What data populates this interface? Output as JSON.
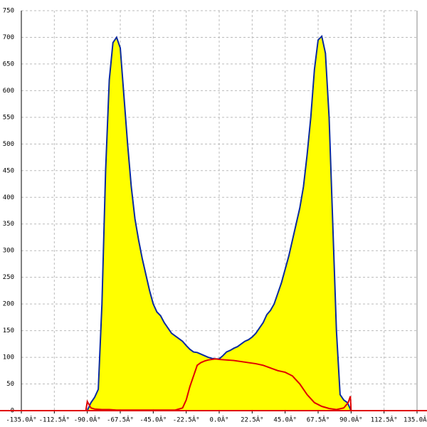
{
  "chart_data": {
    "type": "area",
    "xlim": [
      -135,
      135
    ],
    "ylim": [
      0,
      750
    ],
    "xticks": [
      {
        "value": -135,
        "label": "-135.0Â°"
      },
      {
        "value": -112.5,
        "label": "-112.5Â°"
      },
      {
        "value": -90,
        "label": "-90.0Â°"
      },
      {
        "value": -67.5,
        "label": "-67.5Â°"
      },
      {
        "value": -45,
        "label": "-45.0Â°"
      },
      {
        "value": -22.5,
        "label": "-22.5Â°"
      },
      {
        "value": 0,
        "label": "0.0Â°"
      },
      {
        "value": 22.5,
        "label": "22.5Â°"
      },
      {
        "value": 45,
        "label": "45.0Â°"
      },
      {
        "value": 67.5,
        "label": "67.5Â°"
      },
      {
        "value": 90,
        "label": "90.0Â°"
      },
      {
        "value": 112.5,
        "label": "112.5Â°"
      },
      {
        "value": 135,
        "label": "135.0Â°"
      }
    ],
    "yticks": [
      0,
      50,
      100,
      150,
      200,
      250,
      300,
      350,
      400,
      450,
      500,
      550,
      600,
      650,
      700,
      750
    ],
    "grid": true,
    "series": [
      {
        "color": "#0a2aa0",
        "fill": "#ffff00",
        "x": [
          -90,
          -87.5,
          -85,
          -82.5,
          -80,
          -77.5,
          -75,
          -72.5,
          -70,
          -67.5,
          -65,
          -62.5,
          -60,
          -57.5,
          -55,
          -52.5,
          -50,
          -47.5,
          -45,
          -42.5,
          -40,
          -37.5,
          -35,
          -32.5,
          -30,
          -27.5,
          -25,
          -22.5,
          -20,
          -17.5,
          -15,
          -12.5,
          -10,
          -7.5,
          -5,
          -2.5,
          0,
          2.5,
          5,
          7.5,
          10,
          12.5,
          15,
          17.5,
          20,
          22.5,
          25,
          27.5,
          30,
          32.5,
          35,
          37.5,
          40,
          42.5,
          45,
          47.5,
          50,
          52.5,
          55,
          57.5,
          60,
          62.5,
          65,
          67.5,
          70,
          72.5,
          75,
          77.5,
          80,
          82.5,
          85,
          87.5,
          90
        ],
        "values": [
          0,
          15,
          25,
          40,
          200,
          450,
          620,
          690,
          700,
          680,
          590,
          500,
          420,
          360,
          320,
          285,
          255,
          225,
          200,
          185,
          178,
          165,
          155,
          145,
          140,
          135,
          130,
          122,
          115,
          110,
          109,
          106,
          103,
          100,
          98,
          97,
          97,
          103,
          110,
          113,
          117,
          120,
          125,
          130,
          133,
          138,
          145,
          155,
          165,
          180,
          188,
          200,
          220,
          240,
          265,
          290,
          320,
          350,
          380,
          420,
          480,
          550,
          640,
          695,
          702,
          670,
          550,
          350,
          150,
          30,
          20,
          15,
          0
        ]
      },
      {
        "color": "#e00000",
        "x": [
          -135,
          -91,
          -90,
          -87.5,
          -85,
          -80,
          -75,
          -70,
          -30,
          -27.5,
          -25,
          -22.5,
          -20,
          -17.5,
          -15,
          -12.5,
          -10,
          -7.5,
          -5,
          -2.5,
          0,
          5,
          10,
          15,
          20,
          25,
          30,
          35,
          40,
          45,
          50,
          55,
          60,
          65,
          70,
          75,
          80,
          85,
          88,
          89.5,
          90,
          135
        ],
        "values": [
          0,
          0,
          17,
          5,
          3,
          2,
          2,
          1,
          1,
          3,
          5,
          20,
          45,
          65,
          85,
          90,
          93,
          95,
          96,
          97,
          96,
          95,
          94,
          92,
          90,
          88,
          85,
          80,
          75,
          72,
          65,
          50,
          30,
          15,
          8,
          4,
          2,
          5,
          15,
          27,
          0,
          0
        ]
      }
    ]
  }
}
